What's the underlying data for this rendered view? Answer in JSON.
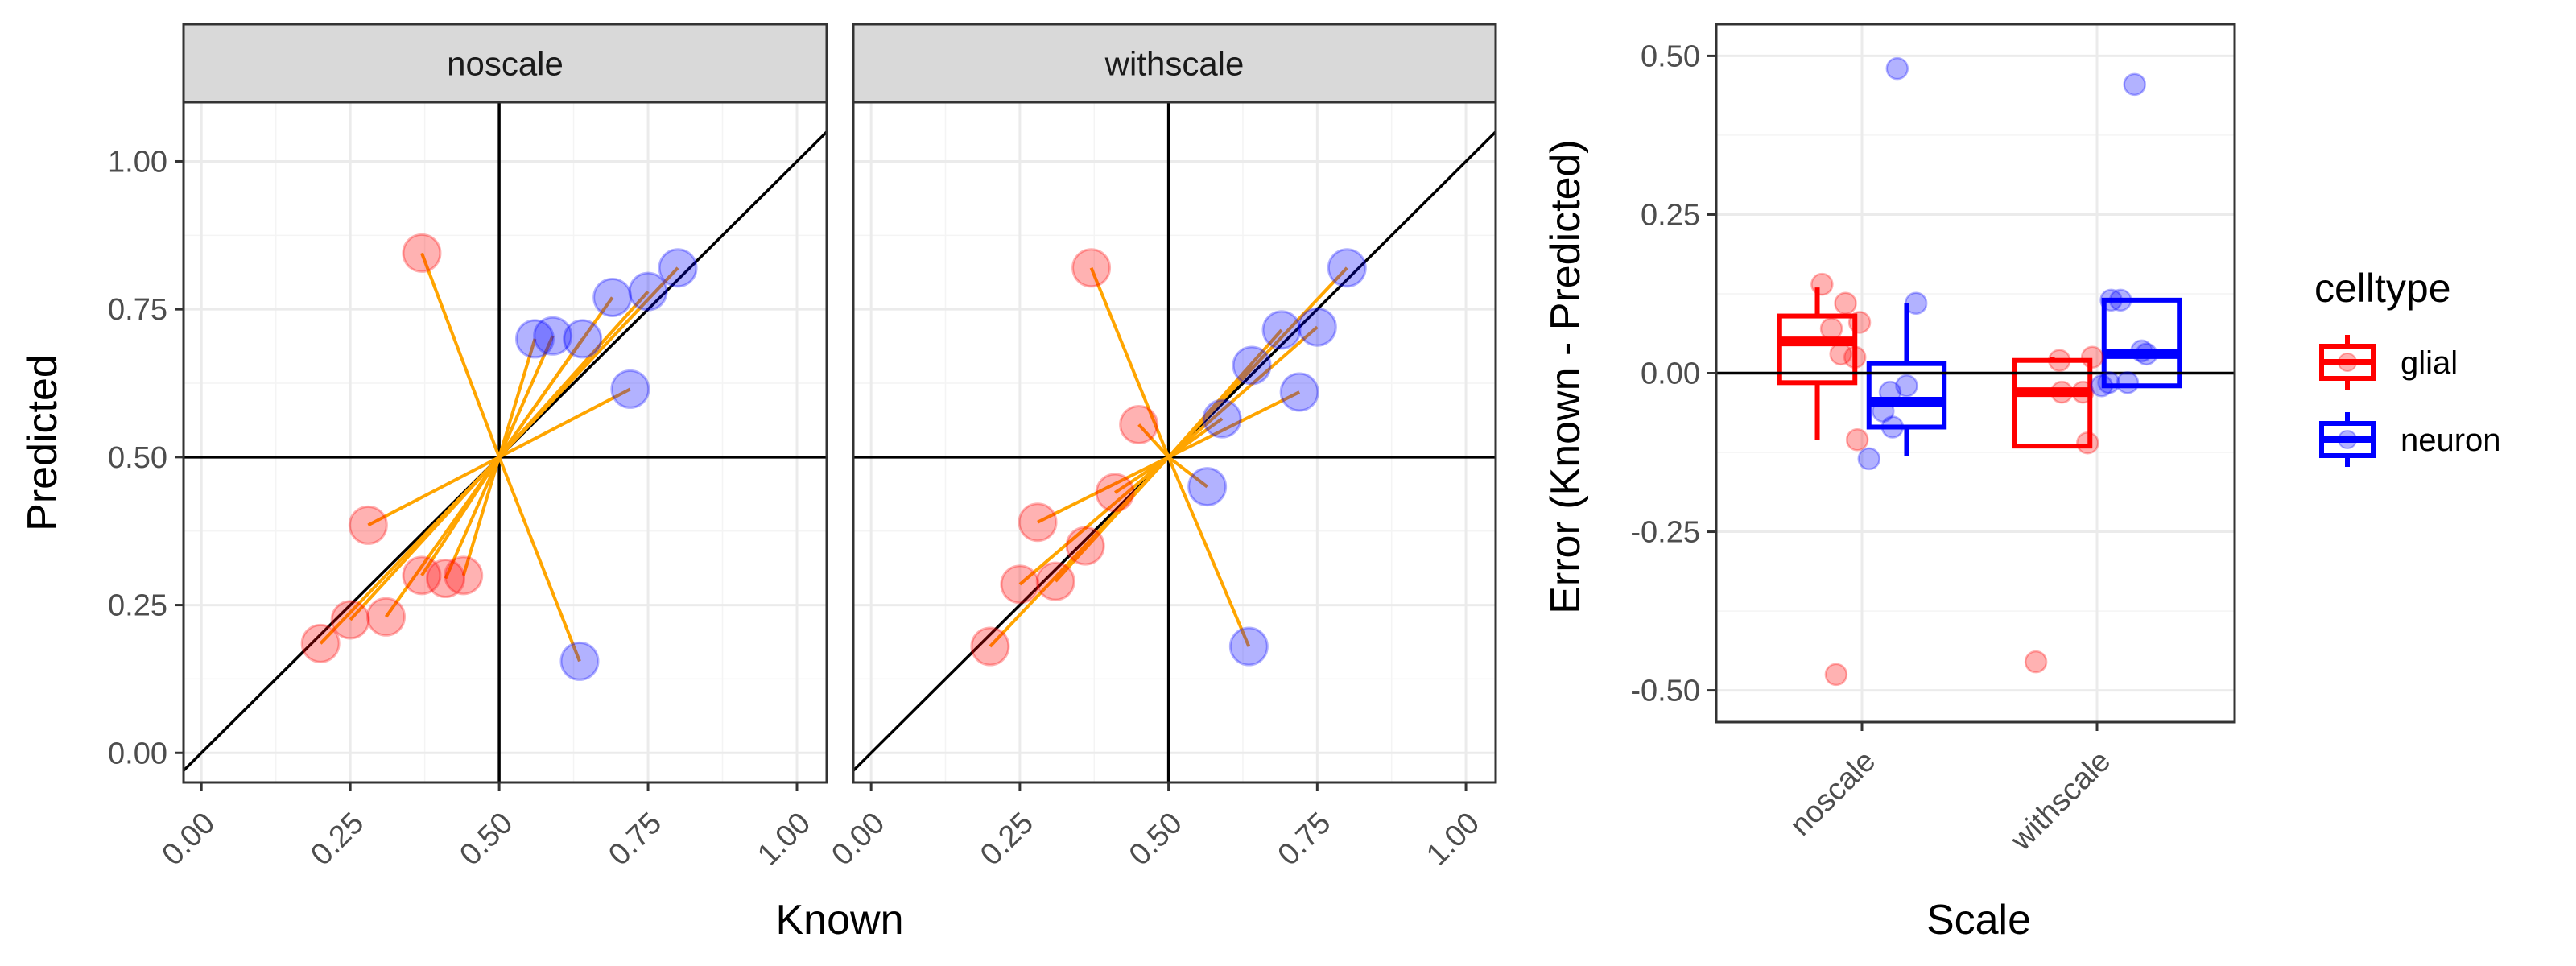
{
  "colors": {
    "glial": "#FF0000",
    "neuron": "#0000FF",
    "segment": "#FFA500",
    "grid_major": "#EBEBEB",
    "grid_minor": "#F4F4F4",
    "strip_fill": "#D9D9D9",
    "panel_border": "#333333"
  },
  "chart_data": [
    {
      "type": "scatter",
      "facets": [
        "noscale",
        "withscale"
      ],
      "xlabel": "Known",
      "ylabel": "Predicted",
      "xlim": [
        -0.03,
        1.05
      ],
      "ylim": [
        -0.05,
        1.1
      ],
      "x_ticks": [
        "0.00",
        "0.25",
        "0.50",
        "0.75",
        "1.00"
      ],
      "y_ticks": [
        "0.00",
        "0.25",
        "0.50",
        "0.75",
        "1.00"
      ],
      "reference_lines": {
        "hline": 0.5,
        "vline": 0.5,
        "diagonal": "y = x"
      },
      "segment_origin": [
        0.5,
        0.5
      ],
      "series": [
        {
          "facet": "noscale",
          "points": [
            {
              "celltype": "glial",
              "known": 0.37,
              "predicted": 0.845
            },
            {
              "celltype": "glial",
              "known": 0.28,
              "predicted": 0.385
            },
            {
              "celltype": "glial",
              "known": 0.2,
              "predicted": 0.185
            },
            {
              "celltype": "glial",
              "known": 0.25,
              "predicted": 0.225
            },
            {
              "celltype": "glial",
              "known": 0.31,
              "predicted": 0.23
            },
            {
              "celltype": "glial",
              "known": 0.37,
              "predicted": 0.3
            },
            {
              "celltype": "glial",
              "known": 0.41,
              "predicted": 0.295
            },
            {
              "celltype": "glial",
              "known": 0.44,
              "predicted": 0.3
            },
            {
              "celltype": "neuron",
              "known": 0.56,
              "predicted": 0.7
            },
            {
              "celltype": "neuron",
              "known": 0.59,
              "predicted": 0.705
            },
            {
              "celltype": "neuron",
              "known": 0.64,
              "predicted": 0.7
            },
            {
              "celltype": "neuron",
              "known": 0.69,
              "predicted": 0.77
            },
            {
              "celltype": "neuron",
              "known": 0.75,
              "predicted": 0.78
            },
            {
              "celltype": "neuron",
              "known": 0.8,
              "predicted": 0.82
            },
            {
              "celltype": "neuron",
              "known": 0.72,
              "predicted": 0.615
            },
            {
              "celltype": "neuron",
              "known": 0.635,
              "predicted": 0.155
            }
          ]
        },
        {
          "facet": "withscale",
          "points": [
            {
              "celltype": "glial",
              "known": 0.37,
              "predicted": 0.82
            },
            {
              "celltype": "glial",
              "known": 0.45,
              "predicted": 0.555
            },
            {
              "celltype": "glial",
              "known": 0.41,
              "predicted": 0.44
            },
            {
              "celltype": "glial",
              "known": 0.28,
              "predicted": 0.39
            },
            {
              "celltype": "glial",
              "known": 0.36,
              "predicted": 0.35
            },
            {
              "celltype": "glial",
              "known": 0.25,
              "predicted": 0.285
            },
            {
              "celltype": "glial",
              "known": 0.31,
              "predicted": 0.29
            },
            {
              "celltype": "glial",
              "known": 0.2,
              "predicted": 0.18
            },
            {
              "celltype": "neuron",
              "known": 0.8,
              "predicted": 0.82
            },
            {
              "celltype": "neuron",
              "known": 0.69,
              "predicted": 0.715
            },
            {
              "celltype": "neuron",
              "known": 0.75,
              "predicted": 0.72
            },
            {
              "celltype": "neuron",
              "known": 0.64,
              "predicted": 0.655
            },
            {
              "celltype": "neuron",
              "known": 0.59,
              "predicted": 0.565
            },
            {
              "celltype": "neuron",
              "known": 0.72,
              "predicted": 0.61
            },
            {
              "celltype": "neuron",
              "known": 0.565,
              "predicted": 0.45
            },
            {
              "celltype": "neuron",
              "known": 0.635,
              "predicted": 0.18
            }
          ]
        }
      ]
    },
    {
      "type": "box",
      "xlabel": "Scale",
      "ylabel": "Error (Known - Predicted)",
      "categories": [
        "noscale",
        "withscale"
      ],
      "ylim": [
        -0.55,
        0.55
      ],
      "y_ticks": [
        0.5,
        0.25,
        0.0,
        -0.25,
        -0.5
      ],
      "y_tick_labels": [
        "0.50",
        "0.25",
        "0.00",
        "-0.25",
        "-0.50"
      ],
      "hline": 0,
      "legend": {
        "title": "celltype",
        "position": "right",
        "entries": [
          "glial",
          "neuron"
        ]
      },
      "boxes": [
        {
          "category": "noscale",
          "celltype": "glial",
          "lower": -0.105,
          "q1": -0.015,
          "median": 0.05,
          "q3": 0.09,
          "upper": 0.135
        },
        {
          "category": "noscale",
          "celltype": "neuron",
          "lower": -0.13,
          "q1": -0.085,
          "median": -0.045,
          "q3": 0.015,
          "upper": 0.11
        },
        {
          "category": "withscale",
          "celltype": "glial",
          "lower": -0.115,
          "q1": -0.115,
          "median": -0.03,
          "q3": 0.02,
          "upper": 0.025
        },
        {
          "category": "withscale",
          "celltype": "neuron",
          "lower": -0.02,
          "q1": -0.02,
          "median": 0.03,
          "q3": 0.115,
          "upper": 0.115
        }
      ],
      "points": [
        {
          "category": "noscale",
          "celltype": "glial",
          "jitter": -0.17,
          "value": 0.14
        },
        {
          "category": "noscale",
          "celltype": "glial",
          "jitter": -0.13,
          "value": 0.07
        },
        {
          "category": "noscale",
          "celltype": "glial",
          "jitter": -0.07,
          "value": 0.11
        },
        {
          "category": "noscale",
          "celltype": "glial",
          "jitter": -0.01,
          "value": 0.08
        },
        {
          "category": "noscale",
          "celltype": "glial",
          "jitter": -0.03,
          "value": 0.025
        },
        {
          "category": "noscale",
          "celltype": "glial",
          "jitter": -0.09,
          "value": 0.03
        },
        {
          "category": "noscale",
          "celltype": "glial",
          "jitter": -0.02,
          "value": -0.105
        },
        {
          "category": "noscale",
          "celltype": "glial",
          "jitter": -0.11,
          "value": -0.475
        },
        {
          "category": "noscale",
          "celltype": "neuron",
          "jitter": 0.03,
          "value": -0.135
        },
        {
          "category": "noscale",
          "celltype": "neuron",
          "jitter": 0.12,
          "value": -0.03
        },
        {
          "category": "noscale",
          "celltype": "neuron",
          "jitter": 0.09,
          "value": -0.06
        },
        {
          "category": "noscale",
          "celltype": "neuron",
          "jitter": 0.13,
          "value": -0.085
        },
        {
          "category": "noscale",
          "celltype": "neuron",
          "jitter": 0.19,
          "value": -0.02
        },
        {
          "category": "noscale",
          "celltype": "neuron",
          "jitter": 0.23,
          "value": 0.11
        },
        {
          "category": "noscale",
          "celltype": "neuron",
          "jitter": 0.15,
          "value": 0.48
        },
        {
          "category": "withscale",
          "celltype": "glial",
          "jitter": -0.26,
          "value": -0.455
        },
        {
          "category": "withscale",
          "celltype": "glial",
          "jitter": -0.16,
          "value": 0.02
        },
        {
          "category": "withscale",
          "celltype": "glial",
          "jitter": -0.15,
          "value": -0.03
        },
        {
          "category": "withscale",
          "celltype": "glial",
          "jitter": -0.06,
          "value": -0.03
        },
        {
          "category": "withscale",
          "celltype": "glial",
          "jitter": -0.04,
          "value": -0.11
        },
        {
          "category": "withscale",
          "celltype": "glial",
          "jitter": -0.02,
          "value": 0.025
        },
        {
          "category": "withscale",
          "celltype": "neuron",
          "jitter": 0.02,
          "value": -0.02
        },
        {
          "category": "withscale",
          "celltype": "neuron",
          "jitter": 0.05,
          "value": -0.015
        },
        {
          "category": "withscale",
          "celltype": "neuron",
          "jitter": 0.06,
          "value": 0.115
        },
        {
          "category": "withscale",
          "celltype": "neuron",
          "jitter": 0.1,
          "value": 0.115
        },
        {
          "category": "withscale",
          "celltype": "neuron",
          "jitter": 0.13,
          "value": -0.015
        },
        {
          "category": "withscale",
          "celltype": "neuron",
          "jitter": 0.16,
          "value": 0.455
        },
        {
          "category": "withscale",
          "celltype": "neuron",
          "jitter": 0.19,
          "value": 0.035
        },
        {
          "category": "withscale",
          "celltype": "neuron",
          "jitter": 0.21,
          "value": 0.03
        }
      ]
    }
  ]
}
